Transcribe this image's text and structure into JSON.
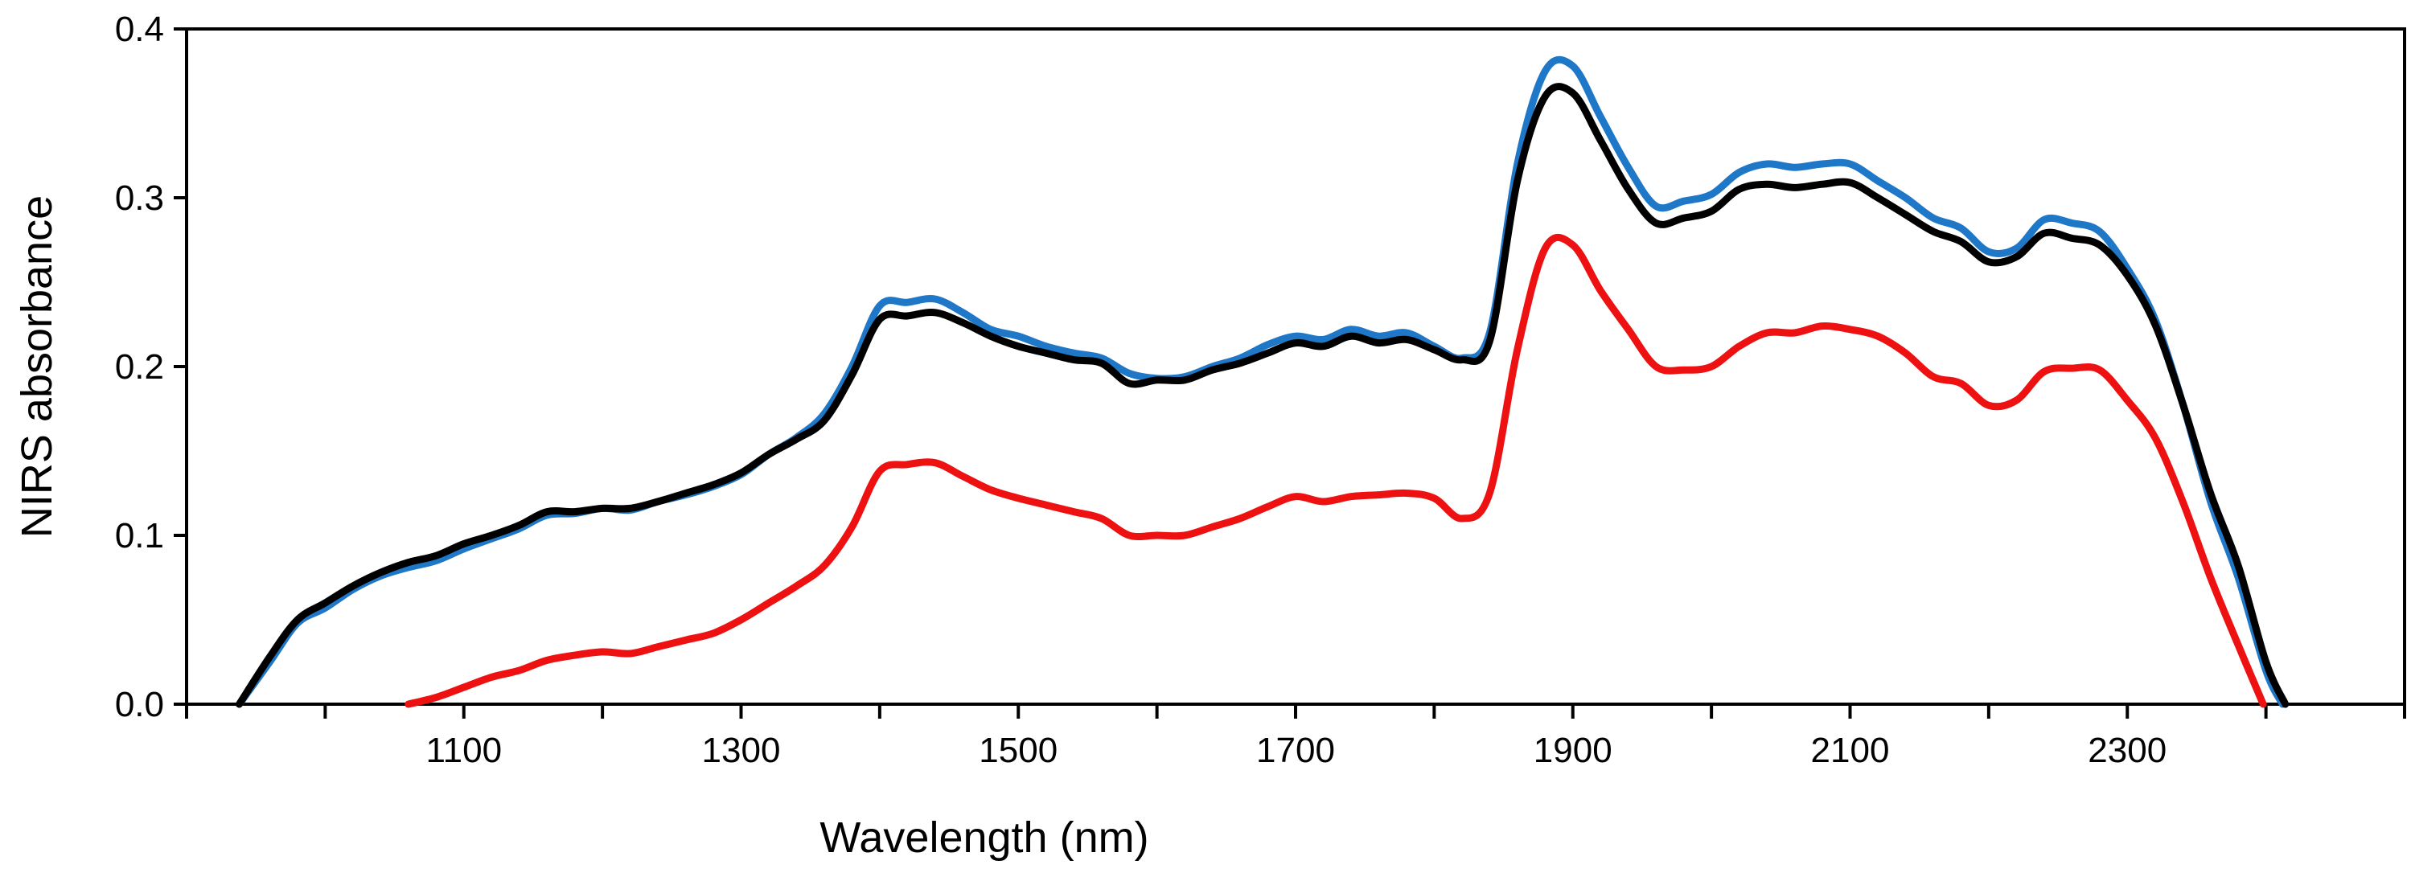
{
  "chart_data": {
    "type": "line",
    "title": "",
    "xlabel": "Wavelength (nm)",
    "ylabel": "NIRS absorbance",
    "xlim": [
      900,
      2500
    ],
    "ylim": [
      0.0,
      0.4
    ],
    "xticks": [
      1100,
      1300,
      1500,
      1700,
      1900,
      2100,
      2300
    ],
    "yticks": [
      "0.0",
      "0.1",
      "0.2",
      "0.3",
      "0.4"
    ],
    "grid": false,
    "legend": "none",
    "series": [
      {
        "name": "blue spectrum",
        "color": "#1f77c8",
        "x": [
          938,
          960,
          980,
          1000,
          1020,
          1040,
          1060,
          1080,
          1100,
          1120,
          1140,
          1160,
          1180,
          1200,
          1220,
          1240,
          1260,
          1280,
          1300,
          1320,
          1340,
          1360,
          1380,
          1400,
          1420,
          1440,
          1460,
          1480,
          1500,
          1520,
          1540,
          1560,
          1580,
          1600,
          1620,
          1640,
          1660,
          1680,
          1700,
          1720,
          1740,
          1760,
          1780,
          1800,
          1820,
          1840,
          1860,
          1880,
          1900,
          1920,
          1940,
          1960,
          1980,
          2000,
          2020,
          2040,
          2060,
          2080,
          2100,
          2120,
          2140,
          2160,
          2180,
          2200,
          2220,
          2240,
          2260,
          2280,
          2300,
          2320,
          2340,
          2360,
          2380,
          2400,
          2412
        ],
        "values": [
          0.0,
          0.025,
          0.048,
          0.057,
          0.068,
          0.076,
          0.081,
          0.085,
          0.092,
          0.098,
          0.104,
          0.112,
          0.113,
          0.116,
          0.115,
          0.12,
          0.124,
          0.129,
          0.136,
          0.148,
          0.158,
          0.172,
          0.2,
          0.236,
          0.238,
          0.24,
          0.232,
          0.222,
          0.218,
          0.212,
          0.208,
          0.205,
          0.196,
          0.193,
          0.194,
          0.2,
          0.205,
          0.213,
          0.218,
          0.216,
          0.222,
          0.218,
          0.22,
          0.212,
          0.205,
          0.22,
          0.32,
          0.375,
          0.378,
          0.348,
          0.318,
          0.295,
          0.298,
          0.302,
          0.315,
          0.32,
          0.318,
          0.32,
          0.32,
          0.31,
          0.3,
          0.288,
          0.282,
          0.268,
          0.27,
          0.287,
          0.285,
          0.28,
          0.258,
          0.228,
          0.178,
          0.12,
          0.075,
          0.02,
          0.0
        ]
      },
      {
        "name": "black spectrum",
        "color": "#000000",
        "x": [
          938,
          960,
          980,
          1000,
          1020,
          1040,
          1060,
          1080,
          1100,
          1120,
          1140,
          1160,
          1180,
          1200,
          1220,
          1240,
          1260,
          1280,
          1300,
          1320,
          1340,
          1360,
          1380,
          1400,
          1420,
          1440,
          1460,
          1480,
          1500,
          1520,
          1540,
          1560,
          1580,
          1600,
          1620,
          1640,
          1660,
          1680,
          1700,
          1720,
          1740,
          1760,
          1780,
          1800,
          1820,
          1840,
          1860,
          1880,
          1900,
          1920,
          1940,
          1960,
          1980,
          2000,
          2020,
          2040,
          2060,
          2080,
          2100,
          2120,
          2140,
          2160,
          2180,
          2200,
          2220,
          2240,
          2260,
          2280,
          2300,
          2320,
          2340,
          2360,
          2380,
          2400,
          2414
        ],
        "values": [
          0.0,
          0.028,
          0.05,
          0.06,
          0.07,
          0.078,
          0.084,
          0.088,
          0.095,
          0.1,
          0.106,
          0.114,
          0.114,
          0.116,
          0.116,
          0.12,
          0.125,
          0.13,
          0.137,
          0.148,
          0.157,
          0.168,
          0.195,
          0.228,
          0.23,
          0.232,
          0.226,
          0.218,
          0.212,
          0.208,
          0.204,
          0.202,
          0.19,
          0.192,
          0.192,
          0.198,
          0.202,
          0.208,
          0.214,
          0.212,
          0.218,
          0.214,
          0.216,
          0.21,
          0.204,
          0.215,
          0.31,
          0.36,
          0.362,
          0.334,
          0.305,
          0.285,
          0.288,
          0.292,
          0.305,
          0.308,
          0.306,
          0.308,
          0.309,
          0.3,
          0.29,
          0.28,
          0.274,
          0.262,
          0.265,
          0.279,
          0.276,
          0.272,
          0.254,
          0.225,
          0.178,
          0.125,
          0.082,
          0.025,
          0.0
        ]
      },
      {
        "name": "red spectrum",
        "color": "#ee1111",
        "x": [
          1060,
          1080,
          1100,
          1120,
          1140,
          1160,
          1180,
          1200,
          1220,
          1240,
          1260,
          1280,
          1300,
          1320,
          1340,
          1360,
          1380,
          1400,
          1420,
          1440,
          1460,
          1480,
          1500,
          1520,
          1540,
          1560,
          1580,
          1600,
          1620,
          1640,
          1660,
          1680,
          1700,
          1720,
          1740,
          1760,
          1780,
          1800,
          1820,
          1840,
          1860,
          1880,
          1900,
          1920,
          1940,
          1960,
          1980,
          2000,
          2020,
          2040,
          2060,
          2080,
          2100,
          2120,
          2140,
          2160,
          2180,
          2200,
          2220,
          2240,
          2260,
          2280,
          2300,
          2320,
          2340,
          2360,
          2380,
          2398
        ],
        "values": [
          0.0,
          0.004,
          0.01,
          0.016,
          0.02,
          0.026,
          0.029,
          0.031,
          0.03,
          0.034,
          0.038,
          0.042,
          0.05,
          0.06,
          0.07,
          0.082,
          0.105,
          0.138,
          0.142,
          0.143,
          0.135,
          0.127,
          0.122,
          0.118,
          0.114,
          0.11,
          0.1,
          0.1,
          0.1,
          0.105,
          0.11,
          0.117,
          0.123,
          0.12,
          0.123,
          0.124,
          0.125,
          0.122,
          0.11,
          0.125,
          0.21,
          0.27,
          0.272,
          0.245,
          0.222,
          0.2,
          0.198,
          0.2,
          0.212,
          0.22,
          0.22,
          0.224,
          0.222,
          0.218,
          0.208,
          0.194,
          0.19,
          0.177,
          0.18,
          0.197,
          0.199,
          0.198,
          0.18,
          0.158,
          0.12,
          0.075,
          0.035,
          0.0
        ]
      }
    ]
  }
}
